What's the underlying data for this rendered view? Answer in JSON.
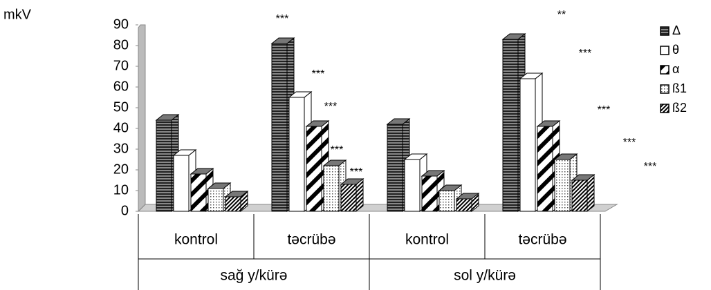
{
  "chart_data": {
    "type": "bar3d",
    "y_label": "mkV",
    "categories": [
      "kontrol",
      "təcrübə",
      "kontrol",
      "təcrübə"
    ],
    "groups": [
      "sağ y/kürə",
      "sol y/kürə"
    ],
    "series": [
      {
        "name": "Δ",
        "values": [
          44,
          81,
          42,
          83
        ]
      },
      {
        "name": "θ",
        "values": [
          27,
          55,
          25,
          64
        ]
      },
      {
        "name": "α",
        "values": [
          18,
          41,
          17,
          41
        ]
      },
      {
        "name": "ß1",
        "values": [
          11,
          22,
          10,
          25
        ]
      },
      {
        "name": "ß2",
        "values": [
          7,
          13,
          6,
          15
        ]
      }
    ],
    "annotations": [
      "***",
      "***",
      "***",
      "***",
      "***",
      "**",
      "***",
      "***",
      "***",
      "***"
    ],
    "ylim": [
      0,
      90
    ],
    "yticks": [
      0,
      10,
      20,
      30,
      40,
      50,
      60,
      70,
      80,
      90
    ],
    "legend": "right"
  }
}
